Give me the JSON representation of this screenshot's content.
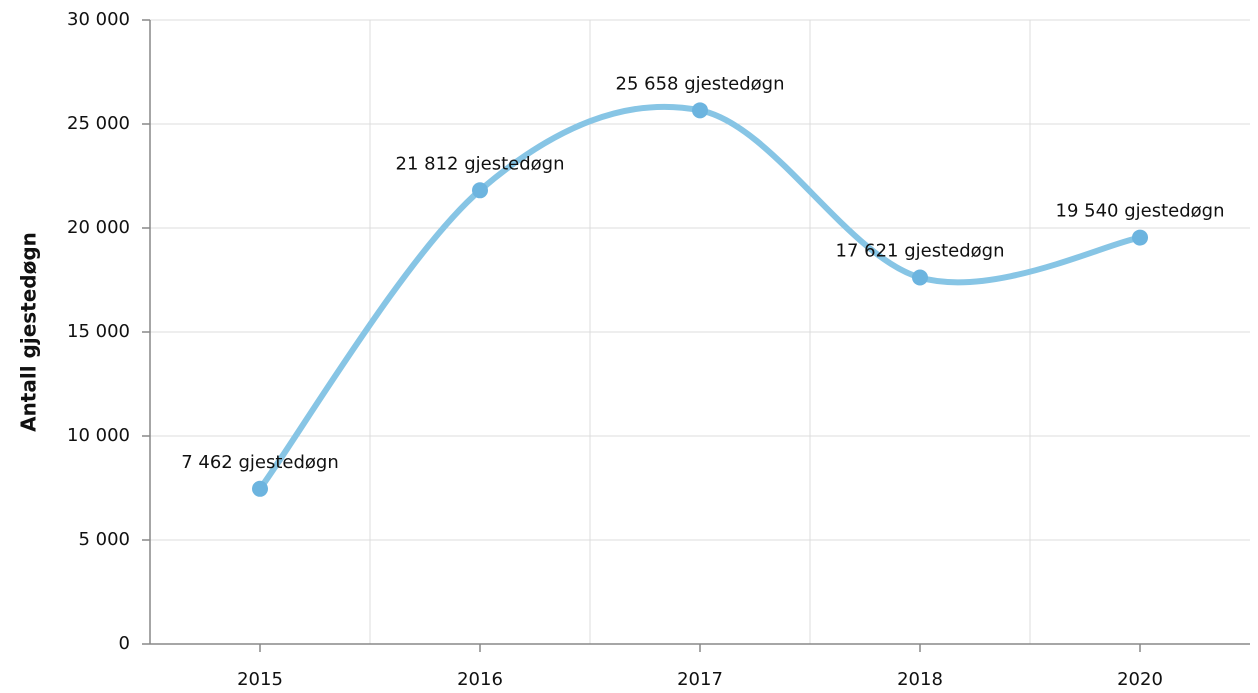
{
  "chart_data": {
    "type": "line",
    "y_label": "Antall gjestedøgn",
    "categories": [
      "2015",
      "2016",
      "2017",
      "2018",
      "2020"
    ],
    "values": [
      7462,
      21812,
      25658,
      17621,
      19540
    ],
    "value_labels": [
      "7 462 gjestedøgn",
      "21 812 gjestedøgn",
      "25 658 gjestedøgn",
      "17 621 gjestedøgn",
      "19 540 gjestedøgn"
    ],
    "color": "#87c5e5",
    "marker_color": "#6cb4df",
    "ylim": [
      0,
      30000
    ],
    "yticks": [
      0,
      {
        "value": 5000,
        "label": "5 000"
      },
      {
        "value": 10000,
        "label": "10 000"
      },
      {
        "value": 15000,
        "label": "15 000"
      },
      {
        "value": 20000,
        "label": "20 000"
      },
      {
        "value": 25000,
        "label": "25 000"
      },
      {
        "value": 30000,
        "label": "30 000"
      }
    ],
    "grid": true
  }
}
